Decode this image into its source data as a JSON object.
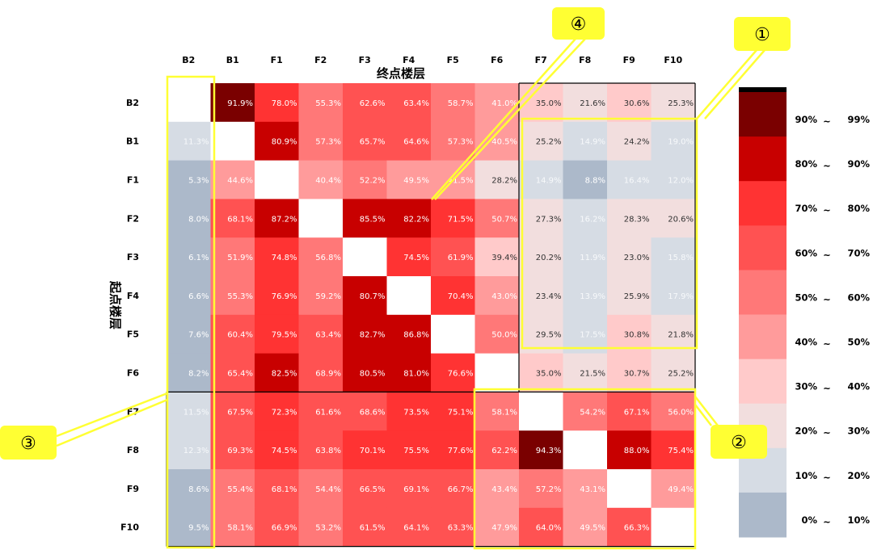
{
  "chart_data": {
    "type": "heatmap",
    "x_axis_title": "终点楼层",
    "y_axis_title": "起点楼层",
    "columns": [
      "B2",
      "B1",
      "F1",
      "F2",
      "F3",
      "F4",
      "F5",
      "F6",
      "F7",
      "F8",
      "F9",
      "F10"
    ],
    "rows": [
      "B2",
      "B1",
      "F1",
      "F2",
      "F3",
      "F4",
      "F5",
      "F6",
      "F7",
      "F8",
      "F9",
      "F10"
    ],
    "values": [
      [
        null,
        91.9,
        78.0,
        55.3,
        62.6,
        63.4,
        58.7,
        41.0,
        35.0,
        21.6,
        30.6,
        25.3
      ],
      [
        11.3,
        null,
        80.9,
        57.3,
        65.7,
        64.6,
        57.3,
        40.5,
        25.2,
        14.9,
        24.2,
        19.0
      ],
      [
        5.3,
        44.6,
        null,
        40.4,
        52.2,
        49.5,
        41.5,
        28.2,
        14.9,
        8.8,
        16.4,
        12.0
      ],
      [
        8.0,
        68.1,
        87.2,
        null,
        85.5,
        82.2,
        71.5,
        50.7,
        27.3,
        16.2,
        28.3,
        20.6
      ],
      [
        6.1,
        51.9,
        74.8,
        56.8,
        null,
        74.5,
        61.9,
        39.4,
        20.2,
        11.9,
        23.0,
        15.8
      ],
      [
        6.6,
        55.3,
        76.9,
        59.2,
        80.7,
        null,
        70.4,
        43.0,
        23.4,
        13.9,
        25.9,
        17.9
      ],
      [
        7.6,
        60.4,
        79.5,
        63.4,
        82.7,
        86.8,
        null,
        50.0,
        29.5,
        17.5,
        30.8,
        21.8
      ],
      [
        8.2,
        65.4,
        82.5,
        68.9,
        80.5,
        81.0,
        76.6,
        null,
        35.0,
        21.5,
        30.7,
        25.2
      ],
      [
        11.5,
        67.5,
        72.3,
        61.6,
        68.6,
        73.5,
        75.1,
        58.1,
        null,
        54.2,
        67.1,
        56.0
      ],
      [
        12.3,
        69.3,
        74.5,
        63.8,
        70.1,
        75.5,
        77.6,
        62.2,
        94.3,
        null,
        88.0,
        75.4
      ],
      [
        8.6,
        55.4,
        68.1,
        54.4,
        66.5,
        69.1,
        66.7,
        43.4,
        57.2,
        43.1,
        null,
        49.4
      ],
      [
        9.5,
        58.1,
        66.9,
        53.2,
        61.5,
        64.1,
        63.3,
        47.9,
        64.0,
        49.5,
        66.3,
        null
      ]
    ],
    "value_suffix": "%",
    "legend": {
      "items": [
        {
          "from": "90%",
          "sep": "~",
          "to": "99%",
          "color": "#7a0000"
        },
        {
          "from": "80%",
          "sep": "~",
          "to": "90%",
          "color": "#c80000"
        },
        {
          "from": "70%",
          "sep": "~",
          "to": "80%",
          "color": "#ff3333"
        },
        {
          "from": "60%",
          "sep": "~",
          "to": "70%",
          "color": "#ff5252"
        },
        {
          "from": "50%",
          "sep": "~",
          "to": "60%",
          "color": "#ff7878"
        },
        {
          "from": "40%",
          "sep": "~",
          "to": "50%",
          "color": "#ff9b9b"
        },
        {
          "from": "30%",
          "sep": "~",
          "to": "40%",
          "color": "#ffcaca"
        },
        {
          "from": "20%",
          "sep": "~",
          "to": "30%",
          "color": "#f2dede"
        },
        {
          "from": "10%",
          "sep": "~",
          "to": "20%",
          "color": "#d6dce4"
        },
        {
          "from": "0%",
          "sep": "~",
          "to": "10%",
          "color": "#acb9ca"
        }
      ]
    },
    "callouts": [
      "①",
      "②",
      "③",
      "④"
    ]
  }
}
